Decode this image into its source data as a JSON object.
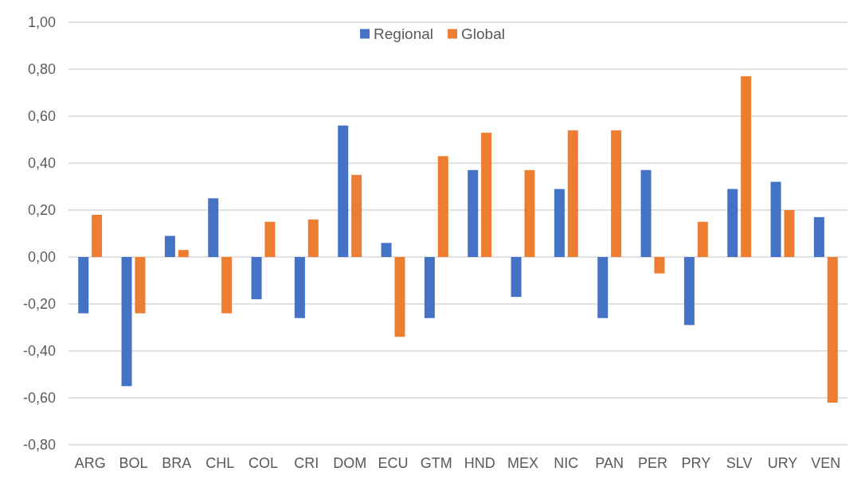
{
  "chart_data": {
    "type": "bar",
    "categories": [
      "ARG",
      "BOL",
      "BRA",
      "CHL",
      "COL",
      "CRI",
      "DOM",
      "ECU",
      "GTM",
      "HND",
      "MEX",
      "NIC",
      "PAN",
      "PER",
      "PRY",
      "SLV",
      "URY",
      "VEN"
    ],
    "series": [
      {
        "name": "Regional",
        "color": "#4472c4",
        "values": [
          -0.24,
          -0.55,
          0.09,
          0.25,
          -0.18,
          -0.26,
          0.56,
          0.06,
          -0.26,
          0.37,
          -0.17,
          0.29,
          -0.26,
          0.37,
          -0.29,
          0.29,
          0.32,
          0.17
        ]
      },
      {
        "name": "Global",
        "color": "#ed7d31",
        "values": [
          0.18,
          -0.24,
          0.03,
          -0.24,
          0.15,
          0.16,
          0.35,
          -0.34,
          0.43,
          0.53,
          0.37,
          0.54,
          0.54,
          -0.07,
          0.15,
          0.77,
          0.2,
          -0.62
        ]
      }
    ],
    "ylim": [
      -0.8,
      1.0
    ],
    "yticks": [
      {
        "value": -0.8,
        "label": "-0,80"
      },
      {
        "value": -0.6,
        "label": "-0,60"
      },
      {
        "value": -0.4,
        "label": "-0,40"
      },
      {
        "value": -0.2,
        "label": "-0,20"
      },
      {
        "value": 0,
        "label": "0,00"
      },
      {
        "value": 0.2,
        "label": "0,20"
      },
      {
        "value": 0.4,
        "label": "0,40"
      },
      {
        "value": 0.6,
        "label": "0,60"
      },
      {
        "value": 0.8,
        "label": "0,80"
      },
      {
        "value": 1.0,
        "label": "1,00"
      }
    ],
    "grid": "y",
    "legend": "top"
  }
}
